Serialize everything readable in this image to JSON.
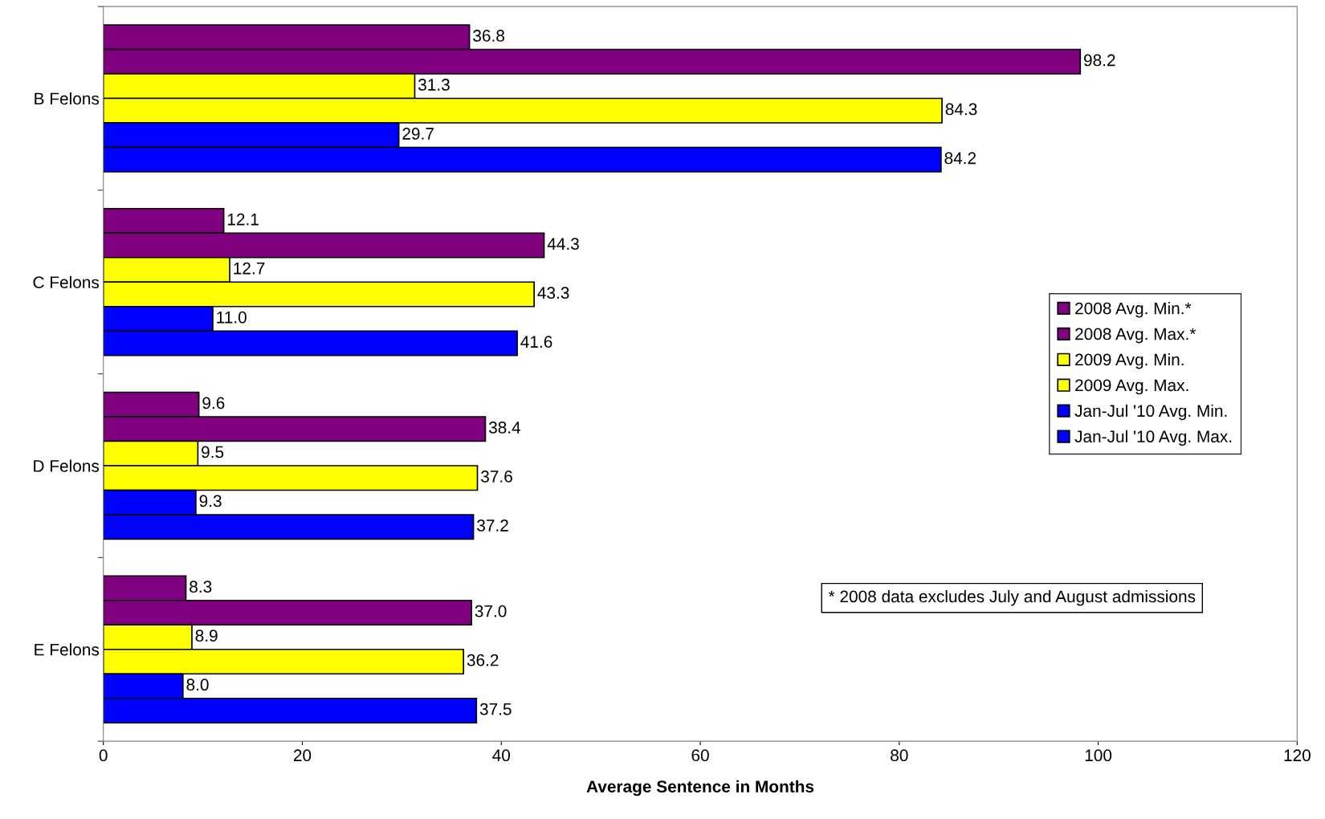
{
  "chart_data": {
    "type": "bar",
    "orientation": "horizontal",
    "xlabel": "Average Sentence in Months",
    "categories": [
      "B Felons",
      "C Felons",
      "D Felons",
      "E Felons"
    ],
    "series": [
      {
        "name": "2008 Avg. Min.*",
        "color": "#800080",
        "values": [
          36.8,
          12.1,
          9.6,
          8.3
        ],
        "value_labels": [
          "36.8",
          "12.1",
          "9.6",
          "8.3"
        ]
      },
      {
        "name": "2008 Avg. Max.*",
        "color": "#800080",
        "values": [
          98.2,
          44.3,
          38.4,
          37.0
        ],
        "value_labels": [
          "98.2",
          "44.3",
          "38.4",
          "37.0"
        ]
      },
      {
        "name": "2009 Avg. Min.",
        "color": "#ffff00",
        "values": [
          31.3,
          12.7,
          9.5,
          8.9
        ],
        "value_labels": [
          "31.3",
          "12.7",
          "9.5",
          "8.9"
        ]
      },
      {
        "name": "2009 Avg. Max.",
        "color": "#ffff00",
        "values": [
          84.3,
          43.3,
          37.6,
          36.2
        ],
        "value_labels": [
          "84.3",
          "43.3",
          "37.6",
          "36.2"
        ]
      },
      {
        "name": "Jan-Jul '10 Avg. Min.",
        "color": "#0000ff",
        "values": [
          29.7,
          11.0,
          9.3,
          8.0
        ],
        "value_labels": [
          "29.7",
          "11.0",
          "9.3",
          "8.0"
        ]
      },
      {
        "name": "Jan-Jul '10 Avg. Max.",
        "color": "#0000ff",
        "values": [
          84.2,
          41.6,
          37.2,
          37.5
        ],
        "value_labels": [
          "84.2",
          "41.6",
          "37.2",
          "37.5"
        ]
      }
    ],
    "xlim": [
      0,
      120
    ],
    "xticks": [
      0,
      20,
      40,
      60,
      80,
      100,
      120
    ],
    "annotations": [
      "* 2008 data excludes July and August admissions"
    ],
    "legend": "right",
    "grid": false
  }
}
